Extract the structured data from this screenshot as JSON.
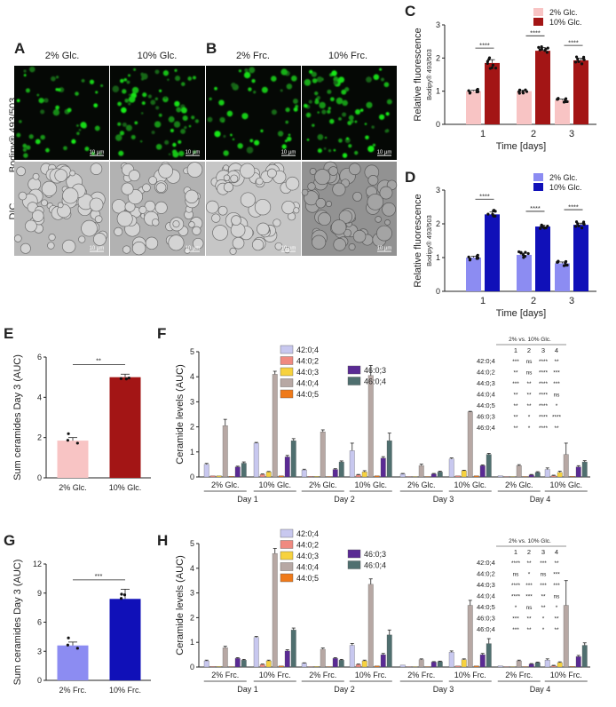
{
  "panels": {
    "A": {
      "label": "A",
      "cols": [
        "2% Glc.",
        "10% Glc."
      ]
    },
    "B": {
      "label": "B",
      "cols": [
        "2% Frc.",
        "10% Frc."
      ]
    },
    "row_labels": [
      "Bodipy® 493/503",
      "DIC"
    ],
    "scale_bar": "10 µm"
  },
  "chart_data": [
    {
      "panel": "C",
      "type": "bar",
      "categories": [
        "1",
        "2",
        "3"
      ],
      "xlabel": "Time [days]",
      "ylabel": "Relative fluorescence",
      "ylabel2": "Bodipy® 493/503",
      "ylim": [
        0,
        3
      ],
      "yticks": [
        0,
        1,
        2,
        3
      ],
      "colors": [
        "#f8c4c4",
        "#a31515"
      ],
      "series": [
        {
          "name": "2% Glc.",
          "values": [
            1.0,
            1.0,
            0.73
          ],
          "err": [
            0.03,
            0.03,
            0.03
          ]
        },
        {
          "name": "10% Glc.",
          "values": [
            1.85,
            2.22,
            1.93
          ],
          "err": [
            0.1,
            0.1,
            0.06
          ]
        }
      ],
      "sig": [
        "****",
        "****",
        "****"
      ]
    },
    {
      "panel": "D",
      "type": "bar",
      "categories": [
        "1",
        "2",
        "3"
      ],
      "xlabel": "Time [days]",
      "ylabel": "Relative fluorescence",
      "ylabel2": "Bodipy® 493/503",
      "ylim": [
        0,
        3
      ],
      "yticks": [
        0,
        1,
        2,
        3
      ],
      "colors": [
        "#8c8cf2",
        "#1010b8"
      ],
      "series": [
        {
          "name": "2% Glc.",
          "values": [
            1.0,
            1.08,
            0.83
          ],
          "err": [
            0.04,
            0.05,
            0.04
          ]
        },
        {
          "name": "10% Glc.",
          "values": [
            2.28,
            1.92,
            1.97
          ],
          "err": [
            0.07,
            0.04,
            0.05
          ]
        }
      ],
      "sig": [
        "****",
        "****",
        "****"
      ]
    },
    {
      "panel": "E",
      "type": "bar",
      "categories": [
        "2% Glc.",
        "10% Glc."
      ],
      "ylabel": "Sum ceramides Day 3 (AUC)",
      "ylim": [
        0,
        6
      ],
      "yticks": [
        0,
        2,
        4,
        6
      ],
      "colors": [
        "#f8c4c4",
        "#a31515"
      ],
      "values": [
        1.85,
        5.0
      ],
      "err": [
        0.15,
        0.15
      ],
      "sig": "**"
    },
    {
      "panel": "G",
      "type": "bar",
      "categories": [
        "2% Frc.",
        "10% Frc."
      ],
      "ylabel": "Sum ceramides Day 3 (AUC)",
      "ylim": [
        0,
        12
      ],
      "yticks": [
        0,
        3,
        6,
        9,
        12
      ],
      "colors": [
        "#8c8cf2",
        "#1010b8"
      ],
      "values": [
        3.6,
        8.4
      ],
      "err": [
        0.35,
        1.0
      ],
      "sig": "***"
    },
    {
      "panel": "F",
      "type": "bar",
      "ylabel": "Ceramide levels (AUC)",
      "ylim": [
        0,
        5
      ],
      "yticks": [
        0,
        1,
        2,
        3,
        4,
        5
      ],
      "groups": [
        "2% Glc.",
        "10% Glc."
      ],
      "days": [
        "Day 1",
        "Day 2",
        "Day 3",
        "Day 4"
      ],
      "species": [
        "42:0;4",
        "44:0;2",
        "44:0;3",
        "44:0;4",
        "44:0;5",
        "46:0;3",
        "46:0;4"
      ],
      "colors": [
        "#c8c8ef",
        "#f08a80",
        "#f7d23e",
        "#b7a8a4",
        "#ef7a1a",
        "#5a2a94",
        "#4f6f6f"
      ],
      "values": [
        [
          [
            0.5,
            0.05,
            0.05,
            2.05,
            0.03,
            0.4,
            0.55
          ],
          [
            1.35,
            0.1,
            0.2,
            4.1,
            0.05,
            0.8,
            1.45
          ]
        ],
        [
          [
            0.28,
            0.03,
            0.03,
            1.8,
            0.02,
            0.3,
            0.6
          ],
          [
            1.05,
            0.08,
            0.2,
            4.05,
            0.05,
            0.75,
            1.45
          ]
        ],
        [
          [
            0.12,
            0.02,
            0.02,
            0.45,
            0.02,
            0.12,
            0.2
          ],
          [
            0.72,
            0.05,
            0.25,
            2.6,
            0.05,
            0.45,
            0.9
          ]
        ],
        [
          [
            0.05,
            0.02,
            0.02,
            0.45,
            0.02,
            0.08,
            0.18
          ],
          [
            0.3,
            0.05,
            0.18,
            0.9,
            0.03,
            0.4,
            0.6
          ]
        ]
      ],
      "err": [
        [
          [
            0.04,
            0.01,
            0.01,
            0.25,
            0.01,
            0.03,
            0.05
          ],
          [
            0.03,
            0.02,
            0.02,
            0.12,
            0.01,
            0.06,
            0.08
          ]
        ],
        [
          [
            0.03,
            0.01,
            0.01,
            0.08,
            0.01,
            0.03,
            0.04
          ],
          [
            0.3,
            0.02,
            0.05,
            0.4,
            0.01,
            0.06,
            0.3
          ]
        ],
        [
          [
            0.02,
            0.01,
            0.01,
            0.06,
            0.01,
            0.02,
            0.03
          ],
          [
            0.04,
            0.01,
            0.02,
            0.02,
            0.01,
            0.03,
            0.04
          ]
        ],
        [
          [
            0.01,
            0.01,
            0.01,
            0.04,
            0.01,
            0.02,
            0.03
          ],
          [
            0.06,
            0.02,
            0.05,
            0.45,
            0.01,
            0.05,
            0.05
          ]
        ]
      ],
      "stats": {
        "title": "2% vs. 10% Glc.",
        "cols": [
          "1",
          "2",
          "3",
          "4"
        ],
        "rows": [
          [
            "42:0;4",
            "***",
            "ns",
            "****",
            "**"
          ],
          [
            "44:0;2",
            "**",
            "ns",
            "****",
            "***"
          ],
          [
            "44:0;3",
            "***",
            "**",
            "****",
            "***"
          ],
          [
            "44:0;4",
            "**",
            "**",
            "****",
            "ns"
          ],
          [
            "44:0;5",
            "**",
            "**",
            "****",
            "*"
          ],
          [
            "46:0;3",
            "**",
            "*",
            "****",
            "****"
          ],
          [
            "46:0;4",
            "**",
            "*",
            "****",
            "**"
          ]
        ]
      }
    },
    {
      "panel": "H",
      "type": "bar",
      "ylabel": "Ceramide levels (AUC)",
      "ylim": [
        0,
        5
      ],
      "yticks": [
        0,
        1,
        2,
        3,
        4,
        5
      ],
      "groups": [
        "2% Frc.",
        "10% Frc."
      ],
      "days": [
        "Day 1",
        "Day 2",
        "Day 3",
        "Day 4"
      ],
      "species": [
        "42:0;4",
        "44:0;2",
        "44:0;3",
        "44:0;4",
        "44:0;5",
        "46:0;3",
        "46:0;4"
      ],
      "colors": [
        "#c8c8ef",
        "#f08a80",
        "#f7d23e",
        "#b7a8a4",
        "#ef7a1a",
        "#5a2a94",
        "#4f6f6f"
      ],
      "values": [
        [
          [
            0.25,
            0.03,
            0.03,
            0.78,
            0.02,
            0.35,
            0.28
          ],
          [
            1.2,
            0.1,
            0.25,
            4.6,
            0.05,
            0.65,
            1.5
          ]
        ],
        [
          [
            0.15,
            0.02,
            0.03,
            0.72,
            0.02,
            0.35,
            0.28
          ],
          [
            0.88,
            0.1,
            0.25,
            3.35,
            0.05,
            0.5,
            1.3
          ]
        ],
        [
          [
            0.08,
            0.02,
            0.02,
            0.3,
            0.02,
            0.2,
            0.22
          ],
          [
            0.6,
            0.05,
            0.3,
            2.5,
            0.05,
            0.5,
            0.95
          ]
        ],
        [
          [
            0.05,
            0.02,
            0.02,
            0.25,
            0.02,
            0.12,
            0.18
          ],
          [
            0.28,
            0.05,
            0.18,
            2.5,
            0.03,
            0.42,
            0.88
          ]
        ]
      ],
      "err": [
        [
          [
            0.03,
            0.01,
            0.01,
            0.06,
            0.01,
            0.03,
            0.03
          ],
          [
            0.04,
            0.02,
            0.03,
            0.2,
            0.01,
            0.05,
            0.08
          ]
        ],
        [
          [
            0.02,
            0.01,
            0.01,
            0.05,
            0.01,
            0.03,
            0.03
          ],
          [
            0.07,
            0.02,
            0.03,
            0.22,
            0.01,
            0.05,
            0.2
          ]
        ],
        [
          [
            0.01,
            0.01,
            0.01,
            0.03,
            0.01,
            0.02,
            0.02
          ],
          [
            0.05,
            0.01,
            0.03,
            0.2,
            0.01,
            0.05,
            0.2
          ]
        ],
        [
          [
            0.01,
            0.01,
            0.01,
            0.03,
            0.01,
            0.02,
            0.02
          ],
          [
            0.05,
            0.02,
            0.03,
            1.0,
            0.01,
            0.05,
            0.1
          ]
        ]
      ],
      "stats": {
        "title": "2% vs. 10% Glc.",
        "cols": [
          "1",
          "2",
          "3",
          "4"
        ],
        "rows": [
          [
            "42:0;4",
            "****",
            "**",
            "***",
            "**"
          ],
          [
            "44:0;2",
            "ns",
            "*",
            "ns",
            "***"
          ],
          [
            "44:0;3",
            "****",
            "***",
            "***",
            "***"
          ],
          [
            "44:0;4",
            "****",
            "***",
            "**",
            "ns"
          ],
          [
            "44:0;5",
            "*",
            "ns",
            "**",
            "*"
          ],
          [
            "46:0;3",
            "***",
            "**",
            "*",
            "**"
          ],
          [
            "46:0;4",
            "***",
            "**",
            "*",
            "**"
          ]
        ]
      }
    }
  ]
}
